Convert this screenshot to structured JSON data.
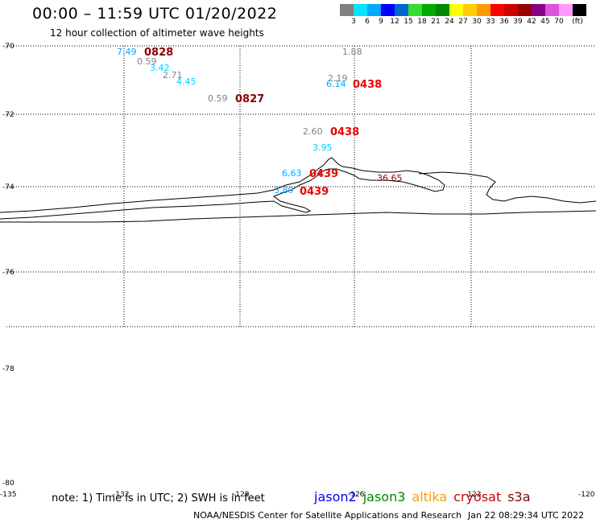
{
  "title": "00:00 – 11:59 UTC 01/20/2022",
  "subtitle": "12 hour collection of altimeter wave heights",
  "legend": {
    "colors": [
      "#808080",
      "#00e5ff",
      "#00aaff",
      "#0000ff",
      "#0066cc",
      "#33dd33",
      "#00aa00",
      "#008800",
      "#ffff00",
      "#ffcc00",
      "#ff9900",
      "#ff0000",
      "#cc0000",
      "#990000",
      "#880088",
      "#dd55dd",
      "#ff99ff",
      "#000000"
    ],
    "labels": [
      "3",
      "6",
      "9",
      "12",
      "15",
      "18",
      "21",
      "24",
      "27",
      "30",
      "33",
      "36",
      "39",
      "42",
      "45",
      "70",
      "(ft)"
    ]
  },
  "axes": {
    "lat_labels": [
      "-70",
      "-72",
      "-74",
      "-76",
      "-78",
      "-80"
    ],
    "lon_labels": [
      "-135",
      "-132",
      "-129",
      "-126",
      "-123",
      "-120"
    ]
  },
  "wave_heights": [
    {
      "text": "7.49",
      "color": "#00aaff"
    },
    {
      "text": "0.59",
      "color": "#808080"
    },
    {
      "text": "3.42",
      "color": "#00cfff"
    },
    {
      "text": "2.71",
      "color": "#808080"
    },
    {
      "text": "4.45",
      "color": "#00cfff"
    },
    {
      "text": "0.59",
      "color": "#808080"
    },
    {
      "text": "1.88",
      "color": "#808080"
    },
    {
      "text": "2.19",
      "color": "#808080"
    },
    {
      "text": "6.14",
      "color": "#00aaff"
    },
    {
      "text": "2.60",
      "color": "#808080"
    },
    {
      "text": "3.95",
      "color": "#00cfff"
    },
    {
      "text": "6.63",
      "color": "#00aaff"
    },
    {
      "text": "3.89",
      "color": "#00aaff"
    },
    {
      "text": "36.65",
      "color": "#880000"
    }
  ],
  "times": [
    {
      "text": "0828",
      "color": "#880000"
    },
    {
      "text": "0827",
      "color": "#880000"
    },
    {
      "text": "0438",
      "color": "#ee0000"
    },
    {
      "text": "0438",
      "color": "#ee0000"
    },
    {
      "text": "0439",
      "color": "#ee0000"
    },
    {
      "text": "0439",
      "color": "#ee0000"
    }
  ],
  "note": "note: 1) Time is in UTC; 2) SWH is in feet",
  "satellites": [
    {
      "name": "jason2",
      "color": "#0000ff"
    },
    {
      "name": "jason3",
      "color": "#008800"
    },
    {
      "name": "altika",
      "color": "#ff9900"
    },
    {
      "name": "cryosat",
      "color": "#cc0000"
    },
    {
      "name": "s3a",
      "color": "#880000"
    }
  ],
  "credit": "NOAA/NESDIS Center for Satellite Applications and Research",
  "generated": "Jan 22 08:29:34 UTC 2022"
}
